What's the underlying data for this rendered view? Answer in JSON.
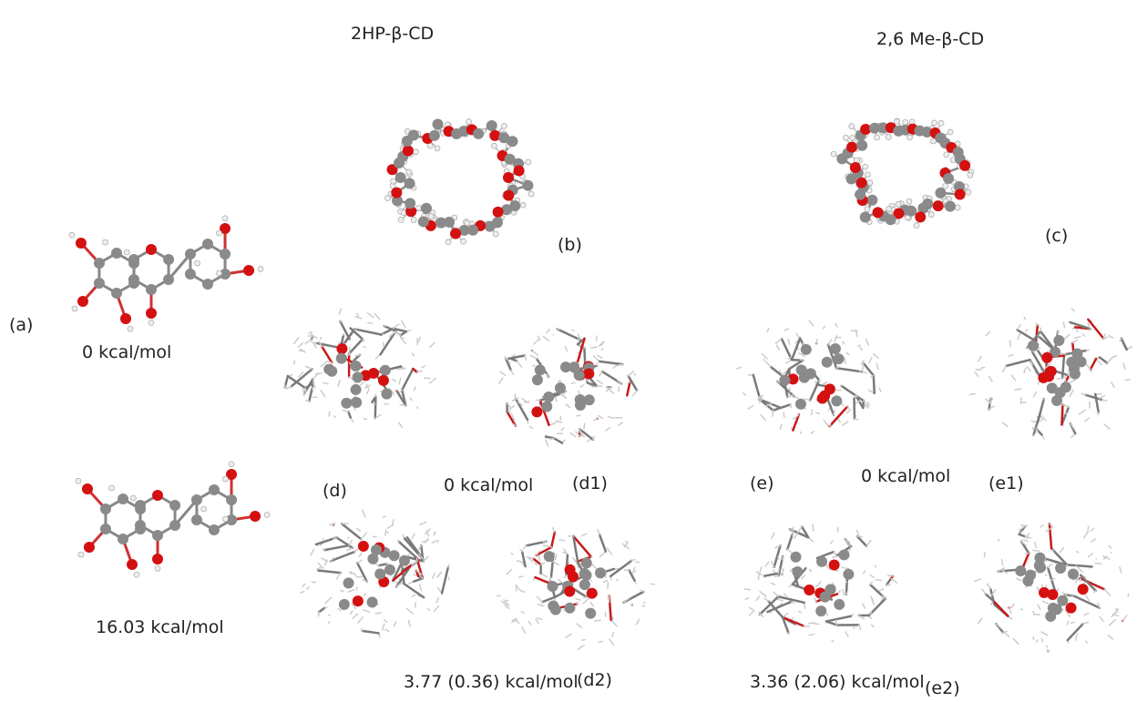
{
  "headers": {
    "left": "2HP-β-CD",
    "right": "2,6 Me-β-CD"
  },
  "panels": {
    "a": {
      "label": "(a)",
      "energy_top": "0 kcal/mol",
      "energy_bottom": "16.03 kcal/mol"
    },
    "b": {
      "label": "(b)"
    },
    "c": {
      "label": "(c)"
    },
    "d": {
      "label": "(d)",
      "label1": "(d1)",
      "energy1": "0 kcal/mol",
      "label2": "(d2)",
      "energy2": "3.77 (0.36) kcal/mol"
    },
    "e": {
      "label": "(e)",
      "label1": "(e1)",
      "energy1": "0 kcal/mol",
      "label2": "(e2)",
      "energy2": "3.36 (2.06) kcal/mol"
    }
  }
}
